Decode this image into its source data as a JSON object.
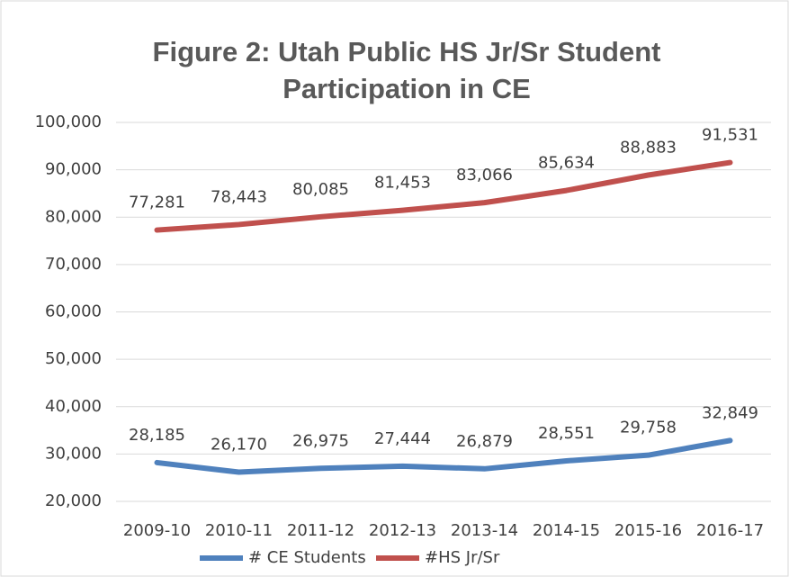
{
  "chart_data": {
    "type": "line",
    "title": [
      "Figure 2: Utah Public HS Jr/Sr Student",
      "Participation in CE"
    ],
    "categories": [
      "2009-10",
      "2010-11",
      "2011-12",
      "2012-13",
      "2013-14",
      "2014-15",
      "2015-16",
      "2016-17"
    ],
    "series": [
      {
        "name": "# CE Students",
        "color": "#4f81bd",
        "values": [
          28185,
          26170,
          26975,
          27444,
          26879,
          28551,
          29758,
          32849
        ],
        "value_labels": [
          "28,185",
          "26,170",
          "26,975",
          "27,444",
          "26,879",
          "28,551",
          "29,758",
          "32,849"
        ]
      },
      {
        "name": "#HS Jr/Sr",
        "color": "#c0504d",
        "values": [
          77281,
          78443,
          80085,
          81453,
          83066,
          85634,
          88883,
          91531
        ],
        "value_labels": [
          "77,281",
          "78,443",
          "80,085",
          "81,453",
          "83,066",
          "85,634",
          "88,883",
          "91,531"
        ]
      }
    ],
    "ylim": [
      20000,
      100000
    ],
    "yticks": [
      {
        "value": 20000,
        "label": "20,000"
      },
      {
        "value": 30000,
        "label": "30,000"
      },
      {
        "value": 40000,
        "label": "40,000"
      },
      {
        "value": 50000,
        "label": "50,000"
      },
      {
        "value": 60000,
        "label": "60,000"
      },
      {
        "value": 70000,
        "label": "70,000"
      },
      {
        "value": 80000,
        "label": "80,000"
      },
      {
        "value": 90000,
        "label": "90,000"
      },
      {
        "value": 100000,
        "label": "100,000"
      }
    ],
    "grid": true,
    "legend": "bottom"
  }
}
